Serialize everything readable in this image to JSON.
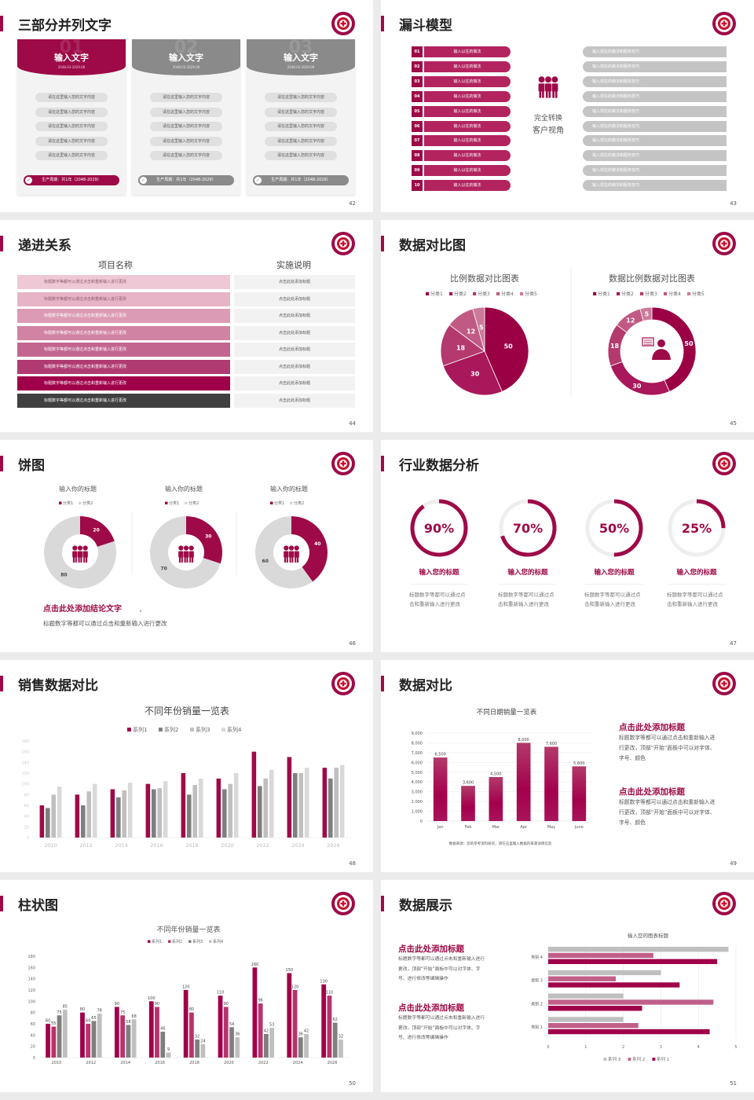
{
  "theme": {
    "primary": "#9e0a47",
    "gray": "#8a8a8a",
    "light_gray": "#d9d9d9",
    "background": "#ebebeb"
  },
  "slides": [
    {
      "page": "42",
      "title": "三部分并列文字",
      "cards": [
        {
          "number": "01",
          "heading": "输入文字",
          "date": "2048.03-2029.08",
          "active": true,
          "items": [
            "请在这里输入您的文字内容",
            "请在这里输入您的文字内容",
            "请在这里输入您的文字内容",
            "请在这里输入您的文字内容",
            "请在这里输入您的文字内容"
          ],
          "footer": "生产周期：共1年（2048-2029）"
        },
        {
          "number": "02",
          "heading": "输入文字",
          "date": "2048.03-2029.08",
          "active": false,
          "items": [
            "请在这里输入您的文字内容",
            "请在这里输入您的文字内容",
            "请在这里输入您的文字内容",
            "请在这里输入您的文字内容",
            "请在这里输入您的文字内容"
          ],
          "footer": "生产周期：共1年（2048-2029）"
        },
        {
          "number": "03",
          "heading": "输入文字",
          "date": "2048.03-2029.08",
          "active": false,
          "items": [
            "请在这里输入您的文字内容",
            "请在这里输入您的文字内容",
            "请在这里输入您的文字内容",
            "请在这里输入您的文字内容",
            "请在这里输入您的文字内容"
          ],
          "footer": "生产周期：共1年（2048-2029）"
        }
      ]
    },
    {
      "page": "43",
      "title": "漏斗模型",
      "center_lines": [
        "完全转换",
        "客户视角"
      ],
      "rows": [
        {
          "num": "01",
          "left": "输入以往的做法",
          "right": "输入现在的做法和服务技巧"
        },
        {
          "num": "02",
          "left": "输入以往的做法",
          "right": "输入现在的做法和服务技巧"
        },
        {
          "num": "03",
          "left": "输入以往的做法",
          "right": "输入现在的做法和服务技巧"
        },
        {
          "num": "04",
          "left": "输入以往的做法",
          "right": "输入现在的做法和服务技巧"
        },
        {
          "num": "05",
          "left": "输入以往的做法",
          "right": "输入现在的做法和服务技巧"
        },
        {
          "num": "06",
          "left": "输入以往的做法",
          "right": "输入现在的做法和服务技巧"
        },
        {
          "num": "07",
          "left": "输入以往的做法",
          "right": "输入现在的做法和服务技巧"
        },
        {
          "num": "08",
          "left": "输入以往的做法",
          "right": "输入现在的做法和服务技巧"
        },
        {
          "num": "09",
          "left": "输入以往的做法",
          "right": "输入现在的做法和服务技巧"
        },
        {
          "num": "10",
          "left": "输入以往的做法",
          "right": "输入现在的做法和服务技巧"
        }
      ]
    },
    {
      "page": "44",
      "title": "递进关系",
      "col_headers": [
        "项目名称",
        "实施说明"
      ],
      "row_colors": [
        "#efc8d6",
        "#e7b3c6",
        "#dc9bb4",
        "#d083a2",
        "#c26690",
        "#b03b73",
        "#a0004a",
        "#404040"
      ],
      "rows": [
        {
          "item": "标题数字等都可以通过点击和重新输入进行更改",
          "desc": "点击此处添加标题"
        },
        {
          "item": "标题数字等都可以通过点击和重新输入进行更改",
          "desc": "点击此处添加标题"
        },
        {
          "item": "标题数字等都可以通过点击和重新输入进行更改",
          "desc": "点击此处添加标题"
        },
        {
          "item": "标题数字等都可以通过点击和重新输入进行更改",
          "desc": "点击此处添加标题"
        },
        {
          "item": "标题数字等都可以通过点击和重新输入进行更改",
          "desc": "点击此处添加标题"
        },
        {
          "item": "标题数字等都可以通过点击和重新输入进行更改",
          "desc": "点击此处添加标题"
        },
        {
          "item": "标题数字等都可以通过点击和重新输入进行更改",
          "desc": "点击此处添加标题"
        },
        {
          "item": "标题数字等都可以通过点击和重新输入进行更改",
          "desc": "点击此处添加标题"
        }
      ]
    },
    {
      "page": "45",
      "title": "数据对比图",
      "center_icon": "person-speech-icon"
    },
    {
      "page": "46",
      "title": "饼图",
      "center_icon": "people-group-icon",
      "conclusion_title": "点击此处添加结论文字",
      "conclusion_punct": "，",
      "conclusion_text": "标题数字等都可以通过点击和重新输入进行更改"
    },
    {
      "page": "47",
      "title": "行业数据分析",
      "metrics": [
        {
          "value": "90%",
          "percent": 90,
          "title": "输入您的标题",
          "desc": "标题数字等都可以通过点击和重新输入进行更改"
        },
        {
          "value": "70%",
          "percent": 70,
          "title": "输入您的标题",
          "desc": "标题数字等都可以通过点击和重新输入进行更改"
        },
        {
          "value": "50%",
          "percent": 50,
          "title": "输入您的标题",
          "desc": "标题数字等都可以通过点击和重新输入进行更改"
        },
        {
          "value": "25%",
          "percent": 25,
          "title": "输入您的标题",
          "desc": "标题数字等都可以通过点击和重新输入进行更改"
        }
      ]
    },
    {
      "page": "48",
      "title": "销售数据对比"
    },
    {
      "page": "49",
      "title": "数据对比",
      "blocks": [
        {
          "title": "点击此处添加标题",
          "lines": [
            "标题数字等都可以通过点击和重新输入进",
            "行更改，顶部“开始”面板中可以对字体、",
            "字号、颜色"
          ]
        },
        {
          "title": "点击此处添加标题",
          "lines": [
            "标题数字等都可以通过点击和重新输入进",
            "行更改，顶部“开始”面板中可以对字体、",
            "字号、颜色"
          ]
        }
      ]
    },
    {
      "page": "50",
      "title": "柱状图"
    },
    {
      "page": "51",
      "title": "数据展示",
      "blocks": [
        {
          "title": "点击此处添加标题",
          "lines": [
            "标题数字等都可以通过点击和重新输入进行",
            "更改，顶部“开始”面板中可以对字体、字",
            "号、进行修改等编辑操作"
          ]
        },
        {
          "title": "点击此处添加标题",
          "lines": [
            "标题数字等都可以通过点击和重新输入进行",
            "更改，顶部“开始”面板中可以对字体、字",
            "号、进行修改等编辑操作"
          ]
        }
      ]
    }
  ],
  "chart_data": [
    {
      "type": "pie",
      "title": "比例数据对比图表",
      "categories": [
        "分类1",
        "分类2",
        "分类3",
        "分类4",
        "分类5"
      ],
      "values": [
        50,
        30,
        18,
        12,
        5
      ],
      "colors": [
        "#9b0045",
        "#a8185a",
        "#b43a6e",
        "#c05a85",
        "#cc7a9a"
      ],
      "legend": "top"
    },
    {
      "type": "pie",
      "variant": "donut",
      "title": "数据比例数据对比图表",
      "categories": [
        "分类1",
        "分类2",
        "分类3",
        "分类4",
        "分类5"
      ],
      "values": [
        50,
        30,
        18,
        12,
        5
      ],
      "colors": [
        "#9b0045",
        "#a8185a",
        "#b43a6e",
        "#c05a85",
        "#cc7a9a"
      ],
      "legend": "top"
    },
    {
      "type": "pie",
      "variant": "donut",
      "title": "输入你的标题",
      "categories": [
        "分类1",
        "分类2"
      ],
      "values": [
        20,
        80
      ],
      "colors": [
        "#9e0a47",
        "#d9d9d9"
      ],
      "legend": "top"
    },
    {
      "type": "pie",
      "variant": "donut",
      "title": "输入你的标题",
      "categories": [
        "分类1",
        "分类2"
      ],
      "values": [
        30,
        70
      ],
      "colors": [
        "#9e0a47",
        "#d9d9d9"
      ],
      "legend": "top"
    },
    {
      "type": "pie",
      "variant": "donut",
      "title": "输入你的标题",
      "categories": [
        "分类1",
        "分类2"
      ],
      "values": [
        40,
        60
      ],
      "colors": [
        "#9e0a47",
        "#d9d9d9"
      ],
      "legend": "top"
    },
    {
      "type": "bar",
      "title": "不同年份销量一览表",
      "categories": [
        "2010",
        "2012",
        "2014",
        "2016",
        "2018",
        "2020",
        "2022",
        "2024",
        "2026"
      ],
      "series": [
        {
          "name": "系列1",
          "values": [
            60,
            80,
            90,
            100,
            120,
            110,
            160,
            150,
            130
          ]
        },
        {
          "name": "系列2",
          "values": [
            55,
            60,
            75,
            90,
            80,
            90,
            96,
            120,
            110
          ]
        },
        {
          "name": "系列3",
          "values": [
            80,
            86,
            88,
            92,
            98,
            100,
            110,
            120,
            130
          ]
        },
        {
          "name": "系列4",
          "values": [
            95,
            100,
            102,
            105,
            110,
            120,
            126,
            130,
            135
          ]
        }
      ],
      "ylim": [
        0,
        180
      ],
      "yticks": [
        0,
        20,
        40,
        60,
        80,
        100,
        120,
        140,
        160,
        180
      ],
      "colors": [
        "#9e0a47",
        "#7f7f7f",
        "#bfbfbf",
        "#d9d9d9"
      ],
      "grid": false,
      "legend": "top"
    },
    {
      "type": "bar",
      "title": "不同日期销量一览表",
      "categories": [
        "Jan",
        "Feb",
        "Mar",
        "Apr",
        "May",
        "June"
      ],
      "values": [
        6500,
        3600,
        4500,
        8000,
        7600,
        5600
      ],
      "data_labels": [
        "6,500",
        "3,600",
        "4,500",
        "8,000",
        "7,600",
        "5,600"
      ],
      "ylim": [
        0,
        9000
      ],
      "yticks": [
        0,
        1000,
        2000,
        3000,
        4000,
        5000,
        6000,
        7000,
        8000,
        9000
      ],
      "ytick_labels": [
        "0",
        "1,000",
        "2,000",
        "3,000",
        "4,000",
        "5,000",
        "6,000",
        "7,000",
        "8,000",
        "9,000"
      ],
      "grid": true,
      "note": "数据来源：您的参考资料研究，请在这里输入数据的来源详情信息"
    },
    {
      "type": "bar",
      "title": "不同年份销量一览表",
      "categories": [
        "2010",
        "2012",
        "2014",
        "2016",
        "2018",
        "2020",
        "2022",
        "2024",
        "2026"
      ],
      "series": [
        {
          "name": "系列1",
          "values": [
            60,
            80,
            90,
            100,
            120,
            110,
            160,
            150,
            130
          ]
        },
        {
          "name": "系列2",
          "values": [
            55,
            60,
            75,
            90,
            80,
            90,
            96,
            120,
            110
          ]
        },
        {
          "name": "系列3",
          "values": [
            75,
            65,
            58,
            46,
            32,
            54,
            42,
            36,
            62
          ]
        },
        {
          "name": "系列4",
          "values": [
            85,
            78,
            68,
            9,
            24,
            36,
            53,
            42,
            32
          ]
        }
      ],
      "ylim": [
        0,
        180
      ],
      "yticks": [
        0,
        20,
        40,
        60,
        80,
        100,
        120,
        140,
        160,
        180
      ],
      "colors": [
        "#a0004a",
        "#b8336a",
        "#7f7f7f",
        "#bfbfbf"
      ],
      "grid": false,
      "legend": "top"
    },
    {
      "type": "bar",
      "orientation": "horizontal",
      "title": "输入您的图表标题",
      "categories": [
        "类别 1",
        "类别 2",
        "类别 3",
        "类别 4"
      ],
      "series": [
        {
          "name": "系列 1",
          "values": [
            4.3,
            2.5,
            3.5,
            4.5
          ]
        },
        {
          "name": "系列 2",
          "values": [
            2.4,
            4.4,
            1.8,
            2.8
          ]
        },
        {
          "name": "系列 3",
          "values": [
            2,
            2,
            3,
            4.8
          ]
        }
      ],
      "xlim": [
        0,
        5
      ],
      "xticks": [
        0,
        1,
        2,
        3,
        4,
        5
      ],
      "colors": [
        "#a0004a",
        "#c0608a",
        "#bfbfbf"
      ],
      "grid": true,
      "legend": "bottom"
    }
  ]
}
